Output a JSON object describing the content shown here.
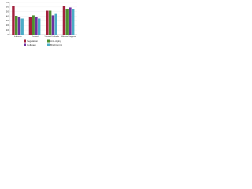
{
  "chart_data": {
    "type": "bar",
    "categories": [
      "Indonesia",
      "Thailand",
      "Vietnam/Cambodia",
      "Malaysia/Singapore"
    ],
    "series": [
      {
        "name": "Vegetation",
        "color": "#a3203c",
        "values": [
          62,
          38,
          52,
          63
        ]
      },
      {
        "name": "Anti-Aging",
        "color": "#4e8f2f",
        "values": [
          41,
          42,
          52,
          56
        ]
      },
      {
        "name": "Collagen",
        "color": "#7030a0",
        "values": [
          38,
          38,
          42,
          59
        ]
      },
      {
        "name": "Brightening",
        "color": "#4bacc6",
        "values": [
          35,
          35,
          45,
          55
        ]
      }
    ],
    "ylim": [
      0,
      70
    ],
    "yticks": [
      0,
      10,
      20,
      30,
      40,
      50,
      60,
      70
    ],
    "grid": true
  }
}
